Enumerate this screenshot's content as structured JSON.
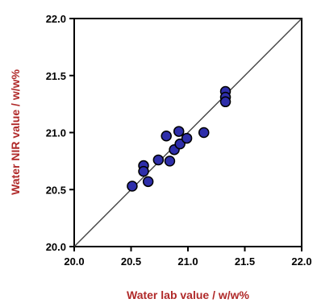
{
  "chart_data": {
    "type": "scatter",
    "xlabel": "Water lab value / w/w%",
    "ylabel": "Water NIR value / w/w%",
    "xlim": [
      20.0,
      22.0
    ],
    "ylim": [
      20.0,
      22.0
    ],
    "xticks": [
      "20.0",
      "20.5",
      "21.0",
      "21.5",
      "22.0"
    ],
    "yticks": [
      "20.0",
      "20.5",
      "21.0",
      "21.5",
      "22.0"
    ],
    "grid": false,
    "reference_line": {
      "from": [
        20.0,
        20.0
      ],
      "to": [
        22.0,
        22.0
      ]
    },
    "marker_fill": "#2e2eaa",
    "marker_edge": "#000000",
    "line_color": "#444444",
    "axis_title_color": "#b02a2a",
    "points": [
      {
        "x": 20.51,
        "y": 20.53
      },
      {
        "x": 20.61,
        "y": 20.71
      },
      {
        "x": 20.61,
        "y": 20.66
      },
      {
        "x": 20.65,
        "y": 20.57
      },
      {
        "x": 20.74,
        "y": 20.76
      },
      {
        "x": 20.81,
        "y": 20.97
      },
      {
        "x": 20.84,
        "y": 20.75
      },
      {
        "x": 20.88,
        "y": 20.85
      },
      {
        "x": 20.92,
        "y": 21.01
      },
      {
        "x": 20.93,
        "y": 20.9
      },
      {
        "x": 20.99,
        "y": 20.95
      },
      {
        "x": 21.14,
        "y": 21.0
      },
      {
        "x": 21.33,
        "y": 21.36
      },
      {
        "x": 21.33,
        "y": 21.31
      },
      {
        "x": 21.33,
        "y": 21.27
      }
    ]
  }
}
